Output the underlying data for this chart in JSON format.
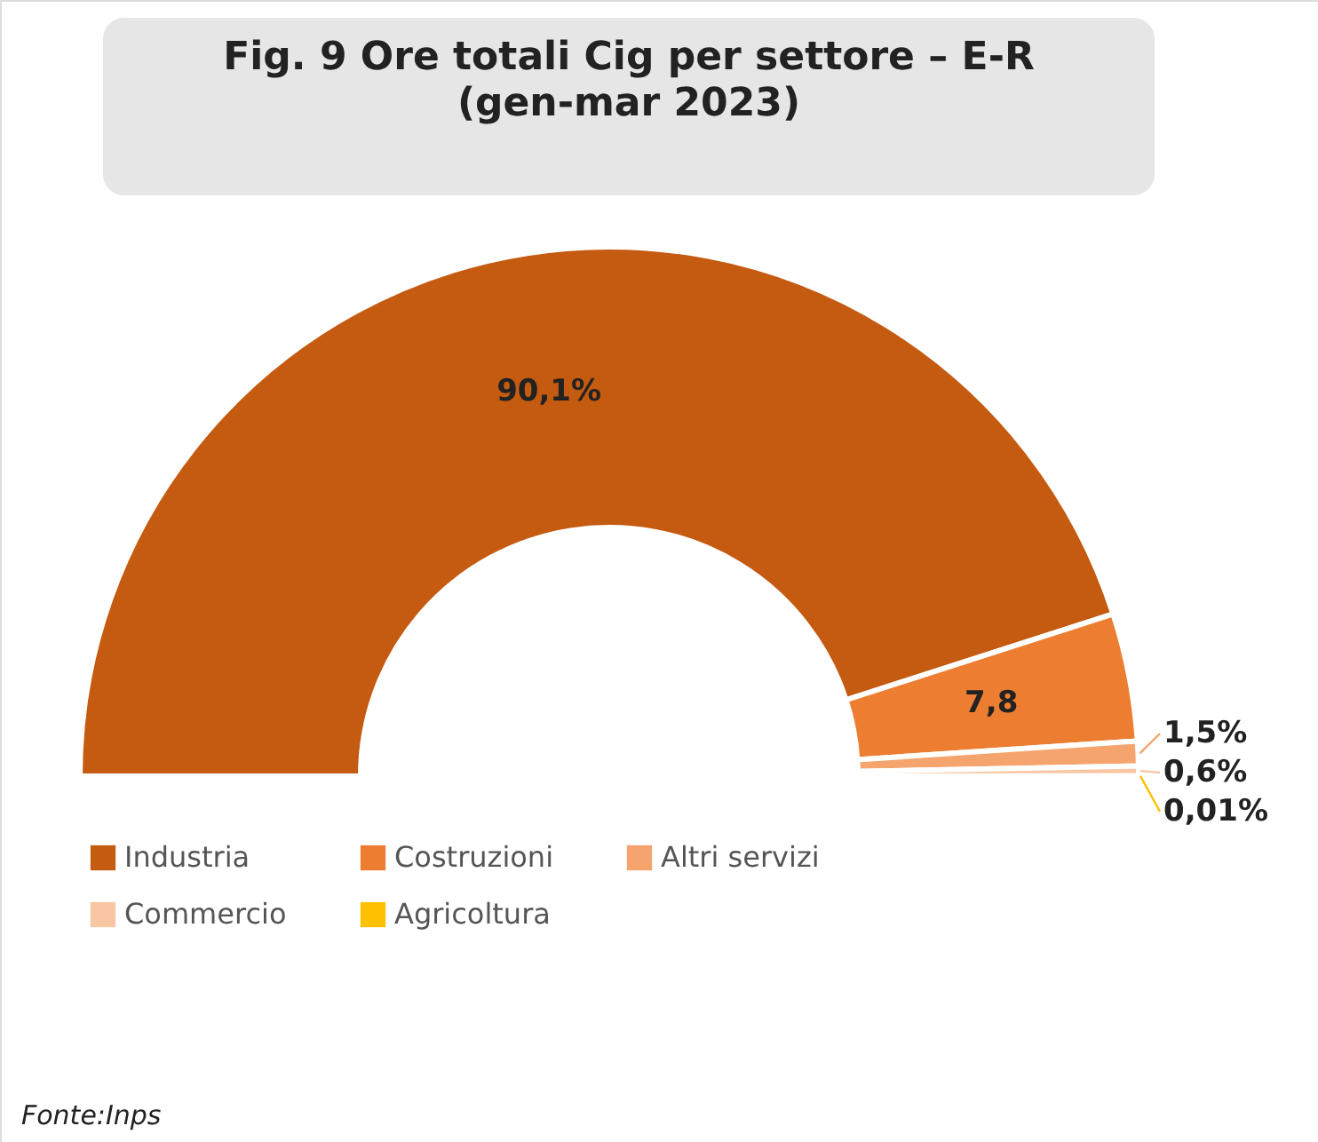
{
  "chart_data": {
    "type": "donut",
    "title": "Fig. 9 Ore totali Cig per settore  – E-R\n(gen-mar 2023)",
    "categories": [
      "Industria",
      "Costruzioni",
      "Altri servizi",
      "Commercio",
      "Agricoltura"
    ],
    "values": [
      90.1,
      7.8,
      1.5,
      0.6,
      0.01
    ],
    "colors": [
      "#c55a11",
      "#ed7d31",
      "#f4a46c",
      "#f8c6a3",
      "#ffc000"
    ],
    "value_labels": [
      "90,1%",
      "7,8",
      "1,5%",
      "0,6%",
      "0,01%"
    ],
    "legend": "bottom",
    "annotations": [
      "Fonte:Inps"
    ]
  }
}
